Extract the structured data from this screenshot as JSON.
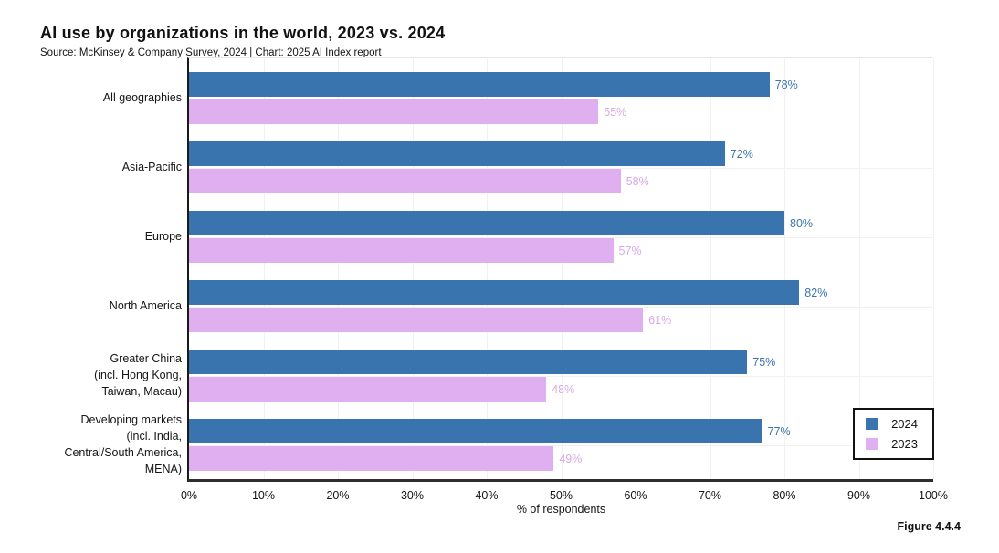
{
  "header": {
    "title": "AI use by organizations in the world, 2023 vs. 2024",
    "subtitle": "Source: McKinsey & Company Survey, 2024 | Chart: 2025 AI Index report"
  },
  "figure_label": "Figure 4.4.4",
  "colors": {
    "bar_2024": "#3a74ae",
    "bar_2023": "#dfaff0",
    "value_label_2024": "#3a74ae",
    "value_label_2023": "#d7a9e8",
    "axis": "#1a1a1a",
    "grid": "#f1f1f1"
  },
  "legend": {
    "items": [
      {
        "label": "2024",
        "color": "#3a74ae"
      },
      {
        "label": "2023",
        "color": "#dfaff0"
      }
    ]
  },
  "chart_data": {
    "type": "bar",
    "orientation": "horizontal",
    "title": "AI use by organizations in the world, 2023 vs. 2024",
    "categories": [
      "All geographies",
      "Asia-Pacific",
      "Europe",
      "North America",
      "Greater China (incl. Hong Kong, Taiwan, Macau)",
      "Developing markets (incl. India, Central/South America, MENA)"
    ],
    "category_display_lines": [
      [
        "All geographies"
      ],
      [
        "Asia-Pacific"
      ],
      [
        "Europe"
      ],
      [
        "North America"
      ],
      [
        "Greater China",
        "(incl. Hong Kong,",
        "Taiwan, Macau)"
      ],
      [
        "Developing markets",
        "(incl. India,",
        "Central/South America,",
        "MENA)"
      ]
    ],
    "series": [
      {
        "name": "2024",
        "values": [
          78,
          72,
          80,
          82,
          75,
          77
        ]
      },
      {
        "name": "2023",
        "values": [
          55,
          58,
          57,
          61,
          48,
          49
        ]
      }
    ],
    "value_suffix": "%",
    "xlabel": "% of respondents",
    "x_ticks": [
      "0%",
      "10%",
      "20%",
      "30%",
      "40%",
      "50%",
      "60%",
      "70%",
      "80%",
      "90%",
      "100%"
    ],
    "xlim": [
      0,
      100
    ],
    "grid": true,
    "legend_position": "lower right"
  }
}
